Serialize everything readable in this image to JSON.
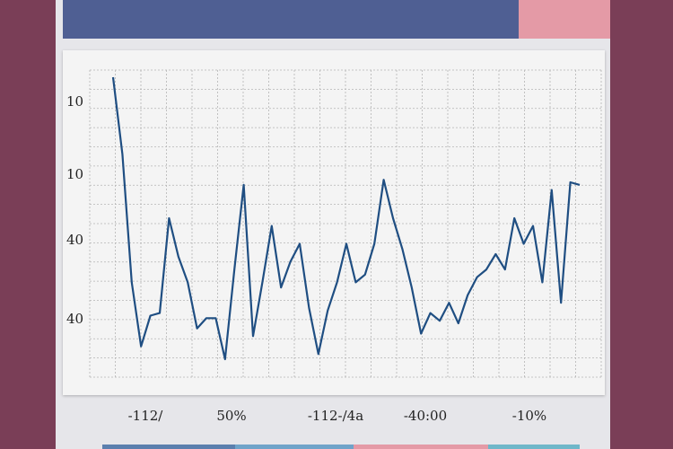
{
  "colors": {
    "background": "#7a3e57",
    "panel": "#e6e6ea",
    "header": "#4f5f93",
    "header_accent": "#e49aa6",
    "plot_background": "#f4f4f4",
    "line": "#1f4e82",
    "grid": "#b5b5b5"
  },
  "chart_data": {
    "type": "line",
    "title": "",
    "xlabel": "",
    "ylabel": "",
    "grid": true,
    "x_tick_labels": [
      "-112/",
      "50%",
      "-112-/4a",
      "-40:00",
      "-10%"
    ],
    "y_tick_labels": [
      "10",
      "10",
      "40",
      "40"
    ],
    "series": [
      {
        "values": [
          100,
          70,
          20,
          -5,
          7,
          8,
          45,
          30,
          20,
          2,
          6,
          6,
          -10,
          25,
          58,
          -1,
          20,
          42,
          18,
          28,
          35,
          10,
          -8,
          9,
          20,
          35,
          20,
          23,
          35,
          60,
          45,
          33,
          18,
          0,
          8,
          5,
          12,
          4,
          15,
          22,
          25,
          31,
          25,
          45,
          35,
          42,
          20,
          56,
          12,
          59,
          58
        ]
      }
    ]
  }
}
